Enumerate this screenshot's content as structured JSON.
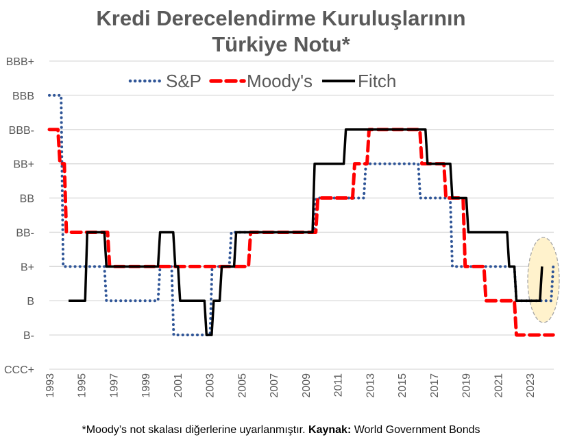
{
  "title_line1": "Kredi Derecelendirme Kuruluşlarının",
  "title_line2": "Türkiye Notu*",
  "footnote": {
    "text": "*Moody’s not skalası diğerlerine uyarlanmıştır. ",
    "source_label": "Kaynak:",
    "source": " World Government Bonds"
  },
  "chart_data": {
    "type": "line",
    "step": true,
    "title": "Kredi Derecelendirme Kuruluşlarının Türkiye Notu*",
    "y_categories": [
      "CCC+",
      "B-",
      "B",
      "B+",
      "BB-",
      "BB",
      "BB+",
      "BBB-",
      "BBB",
      "BBB+"
    ],
    "x_ticks": [
      1993,
      1995,
      1997,
      1999,
      2001,
      2003,
      2005,
      2007,
      2009,
      2011,
      2013,
      2015,
      2017,
      2019,
      2021,
      2023
    ],
    "xlim": [
      1993,
      2024.4
    ],
    "grid": true,
    "legend_position": "top",
    "highlight": {
      "shape": "ellipse",
      "around": "2023-2024",
      "color": "#FFF2CC"
    },
    "series": [
      {
        "name": "S&P",
        "color": "#2F5597",
        "style": "dotted",
        "points": [
          [
            1993,
            "BBB"
          ],
          [
            1993.8,
            "B+"
          ],
          [
            1996.5,
            "B"
          ],
          [
            1999.85,
            "B+"
          ],
          [
            2000.7,
            "B-"
          ],
          [
            2003.1,
            "B+"
          ],
          [
            2004.3,
            "BB-"
          ],
          [
            2009.6,
            "BB"
          ],
          [
            2012.7,
            "BB+"
          ],
          [
            2016.1,
            "BB"
          ],
          [
            2018.1,
            "B+"
          ],
          [
            2022.1,
            "B"
          ],
          [
            2024.4,
            "B+"
          ]
        ]
      },
      {
        "name": "Moody's",
        "color": "#FF0000",
        "style": "dashed",
        "points": [
          [
            1993,
            "BBB-"
          ],
          [
            1993.6,
            "BB+"
          ],
          [
            1994.0,
            "BB-"
          ],
          [
            1996.7,
            "B+"
          ],
          [
            2005.5,
            "BB-"
          ],
          [
            2009.7,
            "BB"
          ],
          [
            2012.0,
            "BB+"
          ],
          [
            2012.9,
            "BBB-"
          ],
          [
            2016.2,
            "BB+"
          ],
          [
            2017.7,
            "BB"
          ],
          [
            2018.9,
            "B+"
          ],
          [
            2020.2,
            "B"
          ],
          [
            2022.1,
            "B-"
          ],
          [
            2024.4,
            "B-"
          ]
        ]
      },
      {
        "name": "Fitch",
        "color": "#000000",
        "style": "solid",
        "points": [
          [
            1994.2,
            "B"
          ],
          [
            1995.3,
            "BB-"
          ],
          [
            1996.5,
            "B+"
          ],
          [
            1999.85,
            "BB-"
          ],
          [
            2000.8,
            "B+"
          ],
          [
            2001.1,
            "B"
          ],
          [
            2002.75,
            "B-"
          ],
          [
            2003.2,
            "B"
          ],
          [
            2003.7,
            "B+"
          ],
          [
            2004.6,
            "BB-"
          ],
          [
            2009.5,
            "BB+"
          ],
          [
            2011.45,
            "BBB-"
          ],
          [
            2016.55,
            "BB+"
          ],
          [
            2018.1,
            "BB"
          ],
          [
            2019.1,
            "BB-"
          ],
          [
            2021.65,
            "B+"
          ],
          [
            2022.1,
            "B"
          ],
          [
            2023.7,
            "B+"
          ]
        ]
      }
    ]
  }
}
